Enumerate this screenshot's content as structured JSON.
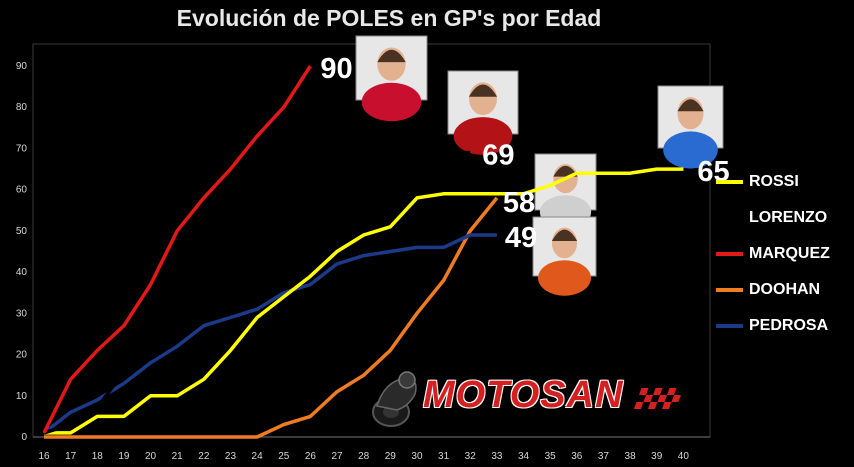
{
  "chart_data": {
    "type": "line",
    "title": "Evolución de POLES en GP's por Edad",
    "xlabel": "",
    "ylabel": "",
    "x": [
      16,
      17,
      18,
      19,
      20,
      21,
      22,
      23,
      24,
      25,
      26,
      27,
      28,
      29,
      30,
      31,
      32,
      33,
      34,
      35,
      36,
      37,
      38,
      39,
      40
    ],
    "xlim": [
      16,
      41
    ],
    "ylim": [
      0,
      90
    ],
    "yticks": [
      0,
      10,
      20,
      30,
      40,
      50,
      60,
      70,
      80,
      90
    ],
    "grid": false,
    "legend": "right",
    "series": [
      {
        "name": "ROSSI",
        "color": "#ffff00",
        "points": [
          [
            16,
            1
          ],
          [
            17,
            1
          ],
          [
            18,
            5
          ],
          [
            19,
            5
          ],
          [
            20,
            10
          ],
          [
            21,
            10
          ],
          [
            22,
            14
          ],
          [
            23,
            21
          ],
          [
            24,
            29
          ],
          [
            25,
            34
          ],
          [
            26,
            39
          ],
          [
            27,
            45
          ],
          [
            28,
            49
          ],
          [
            29,
            51
          ],
          [
            30,
            58
          ],
          [
            31,
            59
          ],
          [
            32,
            59
          ],
          [
            33,
            59
          ],
          [
            34,
            59
          ],
          [
            35,
            61
          ],
          [
            36,
            64
          ],
          [
            37,
            64
          ],
          [
            38,
            64
          ],
          [
            39,
            65
          ],
          [
            40,
            65
          ]
        ],
        "end_label": "65"
      },
      {
        "name": "LORENZO",
        "color": "#000000",
        "points": [
          [
            16,
            1
          ],
          [
            17,
            3
          ],
          [
            18,
            7
          ],
          [
            19,
            16
          ],
          [
            20,
            26
          ],
          [
            21,
            30
          ],
          [
            22,
            35
          ],
          [
            23,
            42
          ],
          [
            24,
            44
          ],
          [
            25,
            51
          ],
          [
            26,
            55
          ],
          [
            27,
            56
          ],
          [
            28,
            61
          ],
          [
            29,
            65
          ],
          [
            30,
            65
          ],
          [
            31,
            69
          ],
          [
            32,
            69
          ]
        ],
        "end_label": "69"
      },
      {
        "name": "MARQUEZ",
        "color": "#e31818",
        "points": [
          [
            16,
            1
          ],
          [
            17,
            14
          ],
          [
            18,
            21
          ],
          [
            19,
            27
          ],
          [
            20,
            37
          ],
          [
            21,
            50
          ],
          [
            22,
            58
          ],
          [
            23,
            65
          ],
          [
            24,
            73
          ],
          [
            25,
            80
          ],
          [
            26,
            90
          ]
        ],
        "end_label": "90"
      },
      {
        "name": "DOOHAN",
        "color": "#f07c22",
        "points": [
          [
            16,
            0
          ],
          [
            17,
            0
          ],
          [
            18,
            0
          ],
          [
            19,
            0
          ],
          [
            20,
            0
          ],
          [
            21,
            0
          ],
          [
            22,
            0
          ],
          [
            23,
            0
          ],
          [
            24,
            0
          ],
          [
            25,
            3
          ],
          [
            26,
            5
          ],
          [
            27,
            11
          ],
          [
            28,
            15
          ],
          [
            29,
            21
          ],
          [
            30,
            30
          ],
          [
            31,
            38
          ],
          [
            32,
            50
          ],
          [
            33,
            58
          ]
        ],
        "end_label": "58"
      },
      {
        "name": "PEDROSA",
        "color": "#1c3a8a",
        "points": [
          [
            16,
            1
          ],
          [
            17,
            6
          ],
          [
            18,
            9
          ],
          [
            19,
            13
          ],
          [
            20,
            18
          ],
          [
            21,
            22
          ],
          [
            22,
            27
          ],
          [
            23,
            29
          ],
          [
            24,
            31
          ],
          [
            25,
            35
          ],
          [
            26,
            37
          ],
          [
            27,
            42
          ],
          [
            28,
            44
          ],
          [
            29,
            45
          ],
          [
            30,
            46
          ],
          [
            31,
            46
          ],
          [
            32,
            49
          ],
          [
            33,
            49
          ]
        ],
        "end_label": "49"
      }
    ]
  },
  "logo": {
    "text": "MOTOSAN"
  }
}
